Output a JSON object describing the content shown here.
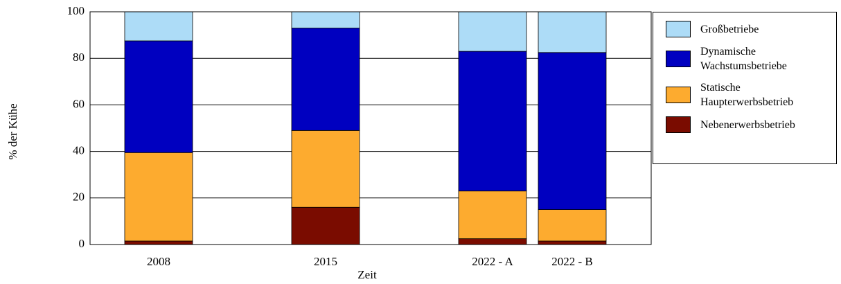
{
  "chart_data": {
    "type": "stacked_bar",
    "xlabel": "Zeit",
    "ylabel": "% der Kühe",
    "categories": [
      "2008",
      "2015",
      "2022 - A",
      "2022 - B"
    ],
    "series": [
      {
        "name": "Nebenerwerbsbetrieb",
        "color": "#7a0c00",
        "values": [
          1.5,
          16,
          2.5,
          1.5
        ]
      },
      {
        "name": "Statische Haupterwerbsbetrieb",
        "color": "#fdab2f",
        "values": [
          38,
          33,
          20.5,
          13.5
        ]
      },
      {
        "name": "Dynamische Wachstumsbetriebe",
        "color": "#0000c0",
        "values": [
          48,
          44,
          60,
          67.5
        ]
      },
      {
        "name": "Großbetriebe",
        "color": "#addcf7",
        "values": [
          12.5,
          7,
          17,
          17.5
        ]
      }
    ],
    "ylim": [
      0,
      100
    ],
    "yticks": [
      0,
      20,
      40,
      60,
      80,
      100
    ],
    "grid": true
  }
}
